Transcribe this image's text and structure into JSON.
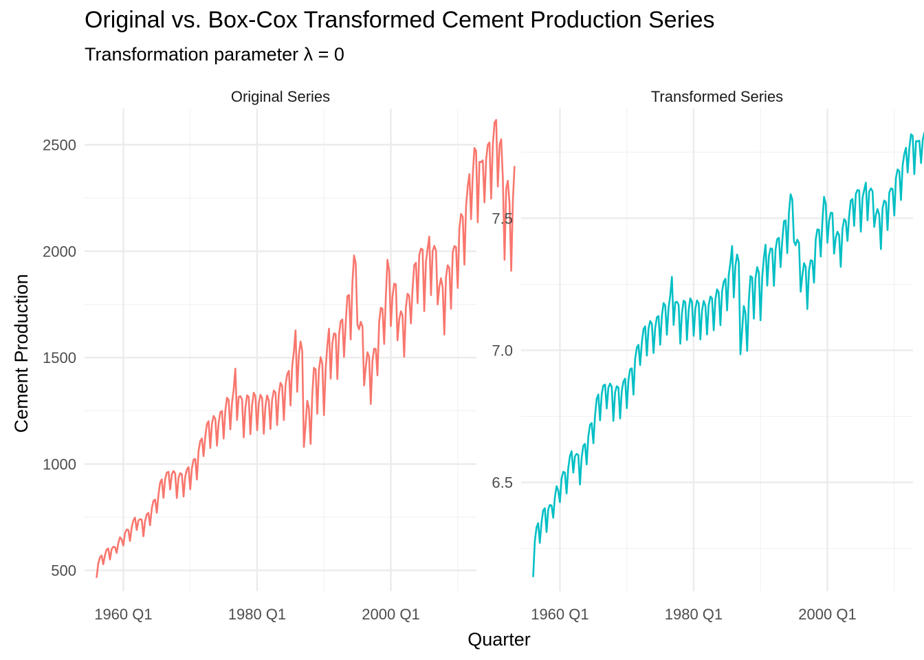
{
  "title": "Original vs. Box-Cox Transformed Cement Production Series",
  "subtitle": "Transformation parameter λ = 0",
  "chart_data": {
    "type": "line",
    "xlabel": "Quarter",
    "ylabel": "Cement Production",
    "x_tick_labels": [
      "1960 Q1",
      "1980 Q1",
      "2000 Q1"
    ],
    "x_ticks": [
      1960,
      1980,
      2000
    ],
    "xlim": [
      1954.2,
      2012.8
    ],
    "x_start": 1956.0,
    "x_step": 0.25,
    "grid": true,
    "legend": "none",
    "panels": [
      {
        "strip": "Original Series",
        "color": "#F8766D",
        "ylim": [
          402,
          2670
        ],
        "y_ticks": [
          500,
          1000,
          1500,
          2000,
          2500
        ],
        "y_tick_labels": [
          "500",
          "1000",
          "1500",
          "2000",
          "2500"
        ],
        "values": [
          465,
          532,
          561,
          570,
          529,
          572,
          598,
          603,
          551,
          600,
          611,
          609,
          582,
          629,
          656,
          645,
          617,
          675,
          692,
          690,
          638,
          703,
          735,
          748,
          690,
          734,
          741,
          738,
          660,
          731,
          764,
          770,
          712,
          792,
          827,
          833,
          771,
          856,
          912,
          928,
          841,
          929,
          960,
          963,
          880,
          951,
          967,
          955,
          840,
          935,
          957,
          952,
          847,
          940,
          974,
          985,
          881,
          979,
          1020,
          1024,
          927,
          1061,
          1108,
          1120,
          1037,
          1129,
          1188,
          1201,
          1075,
          1190,
          1226,
          1212,
          1086,
          1194,
          1243,
          1249,
          1120,
          1251,
          1311,
          1300,
          1163,
          1288,
          1350,
          1448,
          1207,
          1315,
          1319,
          1303,
          1125,
          1263,
          1323,
          1315,
          1140,
          1278,
          1335,
          1318,
          1159,
          1283,
          1325,
          1310,
          1142,
          1271,
          1322,
          1299,
          1164,
          1301,
          1345,
          1336,
          1183,
          1331,
          1382,
          1366,
          1206,
          1371,
          1422,
          1438,
          1275,
          1459,
          1530,
          1628,
          1339,
          1510,
          1576,
          1532,
          1080,
          1183,
          1297,
          1263,
          1094,
          1325,
          1452,
          1445,
          1236,
          1442,
          1502,
          1471,
          1229,
          1448,
          1557,
          1636,
          1401,
          1567,
          1614,
          1611,
          1399,
          1606,
          1671,
          1679,
          1503,
          1659,
          1789,
          1794,
          1585,
          1852,
          1980,
          1942,
          1655,
          1633,
          1668,
          1647,
          1369,
          1454,
          1525,
          1503,
          1282,
          1483,
          1542,
          1540,
          1416,
          1668,
          1734,
          1730,
          1564,
          1785,
          1960,
          1908,
          1648,
          1788,
          1847,
          1844,
          1581,
          1679,
          1718,
          1698,
          1504,
          1736,
          1800,
          1790,
          1660,
          1823,
          1934,
          1946,
          1756,
          1982,
          2012,
          2008,
          1718,
          1952,
          2012,
          2069,
          1793,
          2000,
          2025,
          2003,
          1750,
          1832,
          1873,
          1831,
          1608,
          1878,
          1934,
          1921,
          1729,
          1993,
          2024,
          2020,
          1827,
          2107,
          2175,
          2161,
          1937,
          2209,
          2308,
          2362,
          2150,
          2362,
          2485,
          2471,
          2136,
          2420,
          2419,
          2427,
          2229,
          2431,
          2500,
          2511,
          2247,
          2498,
          2604,
          2617,
          2304,
          2498,
          2526,
          2345,
          1960,
          2295,
          2331,
          2225,
          1908,
          2235,
          2400
        ]
      },
      {
        "strip": "Transformed Series",
        "color": "#00BFC4",
        "ylim": [
          6.088,
          7.915
        ],
        "y_ticks": [
          6.5,
          7.0,
          7.5
        ],
        "y_tick_labels": [
          "6.5",
          "7.0",
          "7.5"
        ],
        "values": [
          6.142,
          6.277,
          6.33,
          6.346,
          6.271,
          6.349,
          6.394,
          6.402,
          6.312,
          6.397,
          6.415,
          6.412,
          6.366,
          6.444,
          6.486,
          6.469,
          6.425,
          6.515,
          6.54,
          6.537,
          6.458,
          6.555,
          6.6,
          6.618,
          6.537,
          6.599,
          6.608,
          6.604,
          6.492,
          6.594,
          6.639,
          6.646,
          6.568,
          6.675,
          6.718,
          6.725,
          6.648,
          6.752,
          6.816,
          6.833,
          6.735,
          6.834,
          6.867,
          6.87,
          6.78,
          6.858,
          6.874,
          6.862,
          6.733,
          6.841,
          6.864,
          6.859,
          6.742,
          6.846,
          6.882,
          6.893,
          6.781,
          6.887,
          6.928,
          6.932,
          6.832,
          6.967,
          7.01,
          7.021,
          6.944,
          7.029,
          7.08,
          7.091,
          6.98,
          7.082,
          7.111,
          7.1,
          6.99,
          7.085,
          7.125,
          7.13,
          7.021,
          7.132,
          7.179,
          7.17,
          7.059,
          7.161,
          7.208,
          7.278,
          7.096,
          7.182,
          7.184,
          7.172,
          7.025,
          7.141,
          7.188,
          7.182,
          7.039,
          7.153,
          7.197,
          7.184,
          7.055,
          7.157,
          7.189,
          7.178,
          7.041,
          7.148,
          7.187,
          7.17,
          7.06,
          7.171,
          7.204,
          7.197,
          7.076,
          7.194,
          7.231,
          7.219,
          7.095,
          7.223,
          7.26,
          7.271,
          7.151,
          7.286,
          7.333,
          7.395,
          7.2,
          7.32,
          7.363,
          7.334,
          6.985,
          7.076,
          7.168,
          7.141,
          6.998,
          7.189,
          7.281,
          7.276,
          7.12,
          7.274,
          7.315,
          7.294,
          7.114,
          7.278,
          7.35,
          7.4,
          7.245,
          7.357,
          7.386,
          7.384,
          7.244,
          7.382,
          7.421,
          7.426,
          7.315,
          7.414,
          7.489,
          7.492,
          7.368,
          7.524,
          7.591,
          7.571,
          7.412,
          7.398,
          7.419,
          7.407,
          7.222,
          7.282,
          7.33,
          7.316,
          7.156,
          7.302,
          7.341,
          7.339,
          7.256,
          7.419,
          7.458,
          7.456,
          7.355,
          7.487,
          7.581,
          7.554,
          7.407,
          7.489,
          7.521,
          7.52,
          7.366,
          7.426,
          7.449,
          7.437,
          7.316,
          7.459,
          7.496,
          7.49,
          7.414,
          7.508,
          7.567,
          7.573,
          7.471,
          7.592,
          7.607,
          7.605,
          7.449,
          7.577,
          7.607,
          7.635,
          7.492,
          7.601,
          7.613,
          7.602,
          7.467,
          7.513,
          7.535,
          7.513,
          7.383,
          7.538,
          7.567,
          7.561,
          7.455,
          7.597,
          7.613,
          7.611,
          7.51,
          7.653,
          7.685,
          7.678,
          7.569,
          7.7,
          7.744,
          7.767,
          7.673,
          7.767,
          7.818,
          7.812,
          7.667,
          7.792,
          7.791,
          7.794,
          7.709,
          7.796,
          7.824,
          7.829,
          7.717,
          7.823,
          7.865,
          7.87,
          7.742,
          7.823,
          7.834,
          7.76,
          7.581,
          7.738,
          7.754,
          7.707,
          7.554,
          7.712,
          7.783
        ]
      }
    ]
  }
}
